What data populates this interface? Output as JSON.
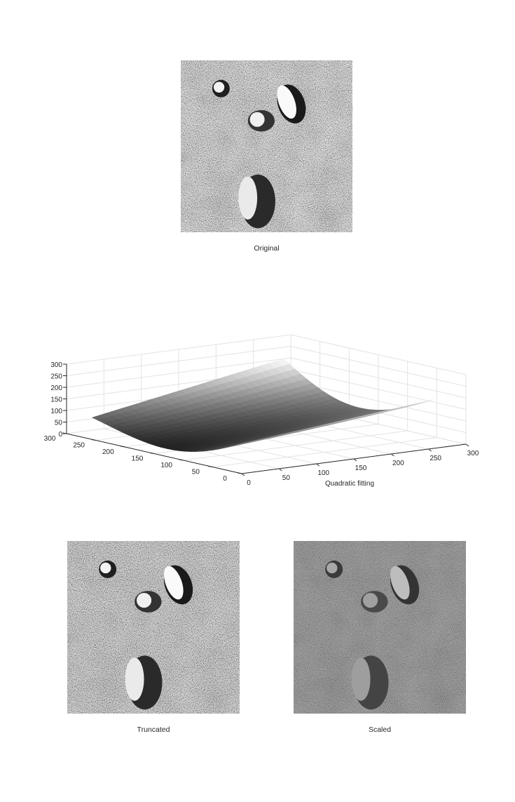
{
  "figures": {
    "original": {
      "caption": "Original"
    },
    "quadratic": {
      "caption": "Quadratic fitting"
    },
    "truncated": {
      "caption": "Truncated"
    },
    "scaled": {
      "caption": "Scaled"
    }
  },
  "chart_data": {
    "type": "surface",
    "title": "",
    "xlabel": "Quadratic fitting",
    "ylabel": "",
    "zlabel": "",
    "xlim": [
      0,
      300
    ],
    "ylim": [
      0,
      300
    ],
    "zlim": [
      0,
      300
    ],
    "xticks": [
      0,
      50,
      100,
      150,
      200,
      250,
      300
    ],
    "yticks": [
      0,
      50,
      100,
      150,
      200,
      250,
      300
    ],
    "zticks": [
      0,
      50,
      100,
      150,
      200,
      250,
      300
    ],
    "grid": true,
    "colormap": "gray",
    "surface_corner_values": {
      "x0_y0": 130,
      "x256_y0": 210,
      "x0_y256": 95,
      "x256_y256": 240
    },
    "surface_min_approx": 20
  }
}
